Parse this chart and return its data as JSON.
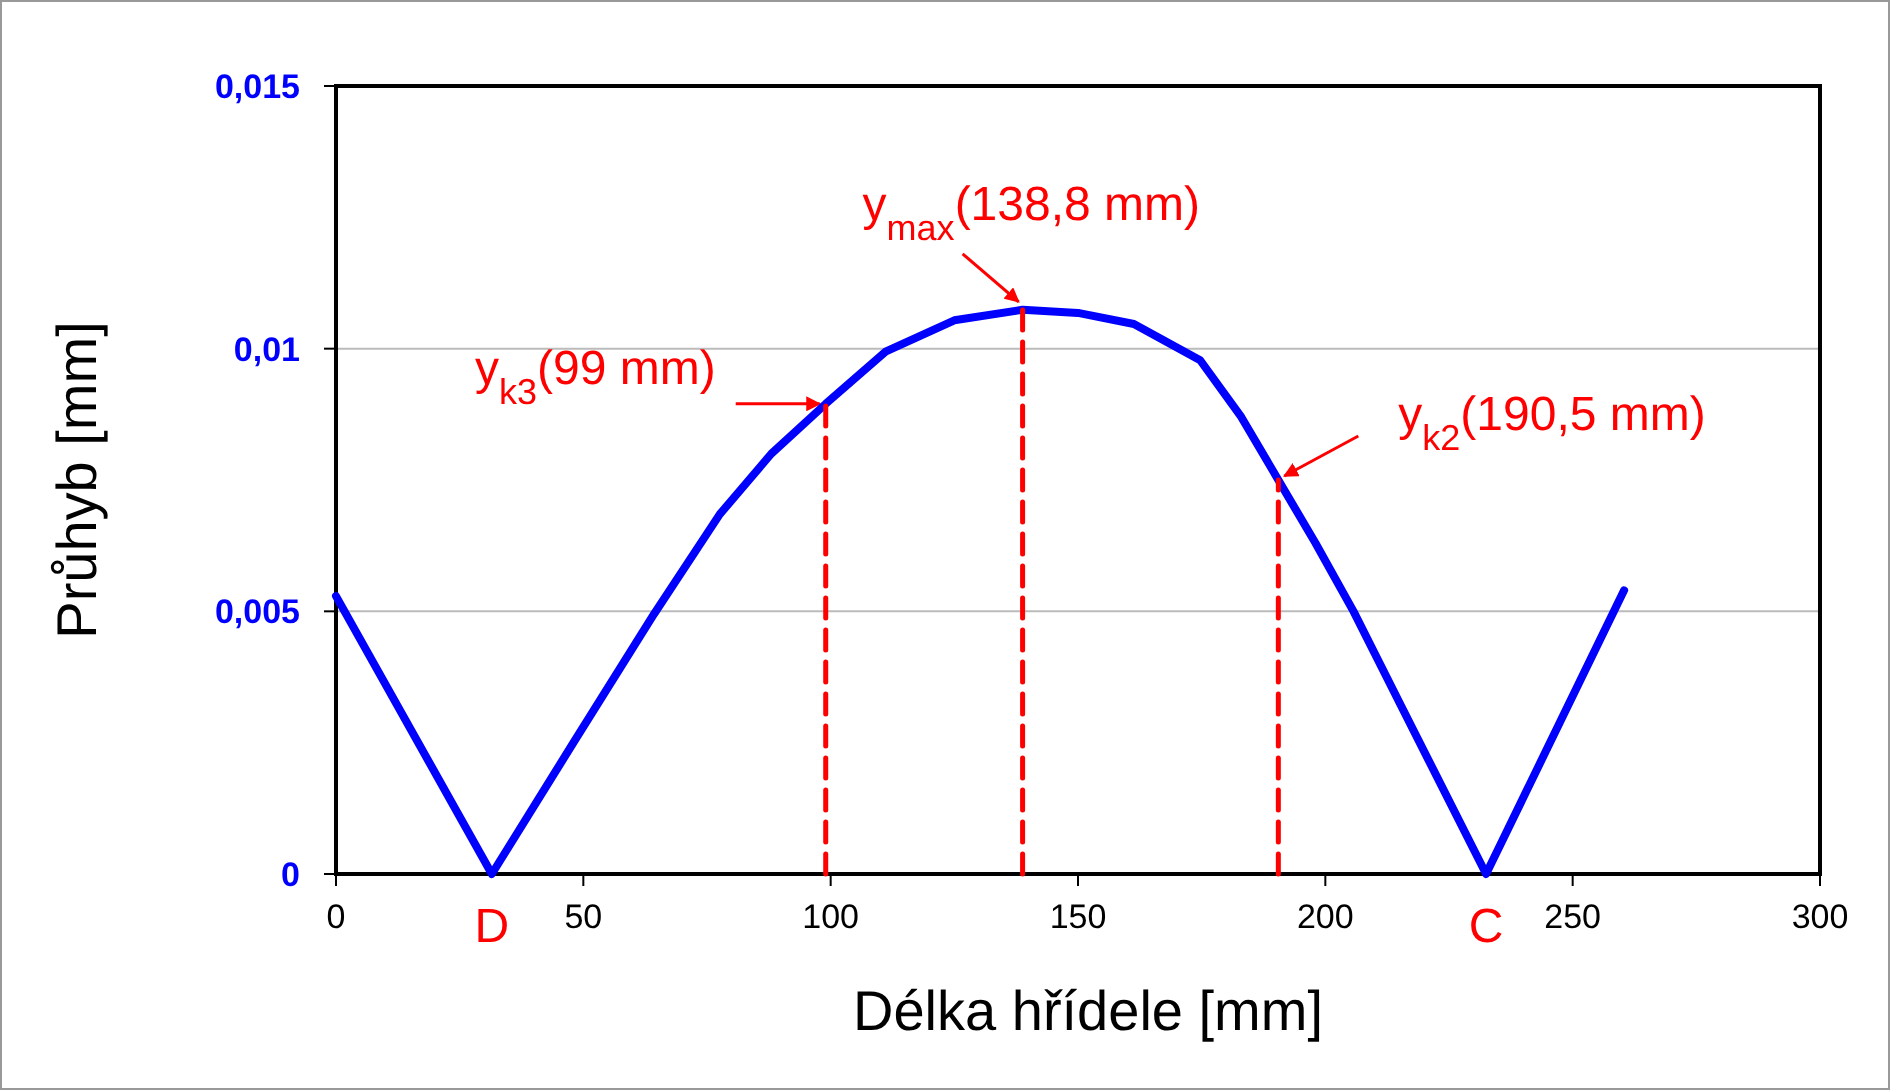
{
  "chart_data": {
    "type": "line",
    "xlabel": "Délka hřídele [mm]",
    "ylabel": "Průhyb [mm]",
    "x": [
      0,
      31.5,
      48,
      64.3,
      77.6,
      88,
      99,
      111.2,
      125,
      138.8,
      150,
      161.3,
      174.7,
      183,
      190.5,
      198,
      205.7,
      215,
      232.5,
      260.4
    ],
    "series": [
      {
        "color": "#0000ff",
        "values": [
          0.00529,
          0,
          0.0025,
          0.00495,
          0.00685,
          0.008,
          0.00895,
          0.00995,
          0.01054,
          0.01074,
          0.01068,
          0.01047,
          0.00978,
          0.0087,
          0.0075,
          0.0063,
          0.005,
          0.00326,
          0,
          0.0054
        ]
      },
      {
        "color": "#ff0000",
        "line_style": "dashed",
        "x": [
          99,
          99
        ],
        "values": [
          0,
          0.00895
        ]
      },
      {
        "color": "#ff0000",
        "line_style": "dashed",
        "x": [
          138.8,
          138.8
        ],
        "values": [
          0,
          0.01074
        ]
      },
      {
        "color": "#ff0000",
        "line_style": "dashed",
        "x": [
          190.5,
          190.5
        ],
        "values": [
          0,
          0.0075
        ]
      }
    ],
    "xlim": [
      0,
      300
    ],
    "xticks": [
      0,
      50,
      100,
      150,
      200,
      250,
      300
    ],
    "ylim": [
      0,
      0.015
    ],
    "yticks": [
      {
        "value": 0,
        "label": "0"
      },
      {
        "value": 0.005,
        "label": "0,005"
      },
      {
        "value": 0.01,
        "label": "0,01"
      },
      {
        "value": 0.015,
        "label": "0,015"
      }
    ],
    "grid": "y",
    "marker": "none",
    "line_style": "solid",
    "annotations": [
      {
        "text": "y$_{k3}$(99 mm)",
        "x": 99,
        "y": 0.00895
      },
      {
        "text": "y$_{max}$(138,8 mm)",
        "x": 138.8,
        "y": 0.01074
      },
      {
        "text": "y$_{k2}$(190,5 mm)",
        "x": 190.5,
        "y": 0.0075
      },
      {
        "text": "D",
        "x": 31.5,
        "y": 0
      },
      {
        "text": "C",
        "x": 232.5,
        "y": 0
      }
    ]
  }
}
